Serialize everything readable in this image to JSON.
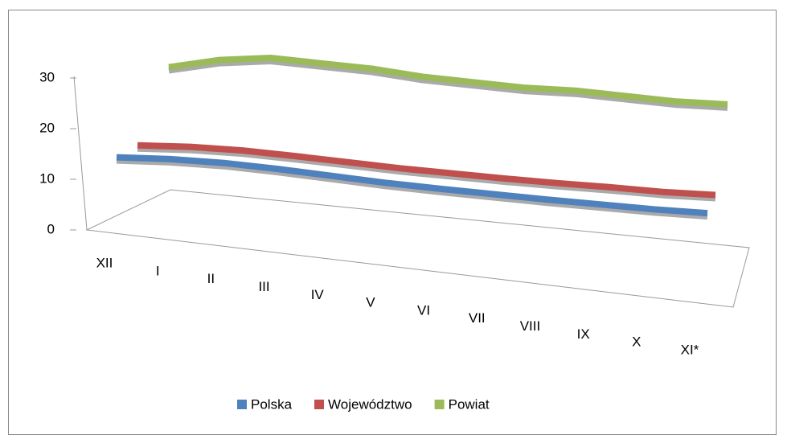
{
  "chart_data": {
    "type": "line3d",
    "categories": [
      "XII",
      "I",
      "II",
      "III",
      "IV",
      "V",
      "VI",
      "VII",
      "VIII",
      "IX",
      "X",
      "XI*"
    ],
    "series": [
      {
        "name": "Polska",
        "color": "#4f81bd",
        "values": [
          13.4,
          14.0,
          14.2,
          14.0,
          13.6,
          13.2,
          13.0,
          12.9,
          12.8,
          12.8,
          12.8,
          13.0
        ]
      },
      {
        "name": "Województwo",
        "color": "#c0504d",
        "values": [
          14.5,
          15.0,
          15.1,
          14.8,
          14.4,
          14.0,
          13.8,
          13.6,
          13.5,
          13.5,
          13.4,
          13.6
        ]
      },
      {
        "name": "Powiat",
        "color": "#9bbb59",
        "values": [
          28.0,
          30.0,
          31.0,
          30.5,
          30.0,
          29.0,
          28.5,
          28.0,
          28.0,
          27.5,
          27.0,
          27.0
        ]
      }
    ],
    "ylim": [
      0,
      30
    ],
    "yticks": [
      0,
      10,
      20,
      30
    ],
    "legend": "bottom"
  }
}
